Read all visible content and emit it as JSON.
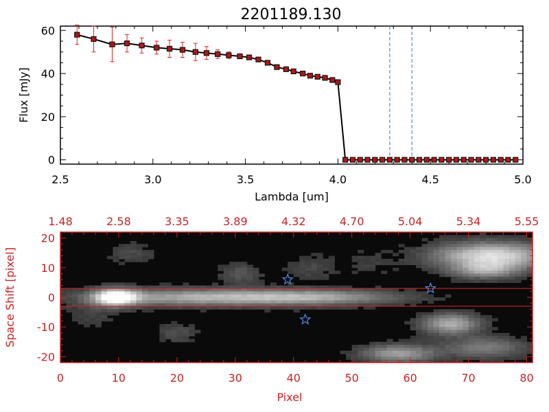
{
  "page": {
    "title": "2201189.130"
  },
  "colors": {
    "axis_black": "#000000",
    "axis_red": "#cc2222",
    "errorbar": "#dd2222",
    "marker_fill": "#b01818",
    "vline": "#4a8fe0",
    "star": "#4a8fe0",
    "image_bg": "#0a0a0a"
  },
  "chart_data": [
    {
      "type": "line",
      "xlabel": "Lambda [um]",
      "ylabel": "Flux [mJy]",
      "xlim": [
        2.5,
        5.0
      ],
      "ylim": [
        -2,
        62
      ],
      "x_ticks": [
        "2.5",
        "3.0",
        "3.5",
        "4.0",
        "4.5",
        "5.0"
      ],
      "y_ticks": [
        "0",
        "20",
        "40",
        "60"
      ],
      "vertical_lines": [
        4.28,
        4.4
      ],
      "series": [
        {
          "x": [
            2.59,
            2.68,
            2.78,
            2.86,
            2.94,
            3.02,
            3.09,
            3.16,
            3.23,
            3.29,
            3.35,
            3.41,
            3.47,
            3.52,
            3.57,
            3.62,
            3.67,
            3.72,
            3.76,
            3.81,
            3.85,
            3.89,
            3.93,
            3.97,
            4.0,
            4.04,
            4.08,
            4.12,
            4.16,
            4.2,
            4.24,
            4.28,
            4.32,
            4.36,
            4.4,
            4.44,
            4.48,
            4.52,
            4.56,
            4.6,
            4.64,
            4.68,
            4.72,
            4.76,
            4.8,
            4.84,
            4.88,
            4.92,
            4.96
          ],
          "values": [
            58,
            56,
            53.5,
            54,
            53,
            52,
            51.5,
            51,
            50,
            49.5,
            49,
            48.5,
            48,
            47.5,
            46.5,
            45,
            43,
            42,
            41,
            40,
            39,
            38.5,
            38,
            37,
            36,
            0,
            0,
            0,
            0,
            0,
            0,
            0,
            0,
            0,
            0,
            0,
            0,
            0,
            0,
            0,
            0,
            0,
            0,
            0,
            0,
            0,
            0,
            0,
            0
          ],
          "errors": [
            4.5,
            6,
            8,
            4,
            3.5,
            3,
            4,
            3.5,
            4,
            3,
            2,
            1.5,
            1,
            1,
            1,
            1,
            1,
            1,
            1,
            1,
            1,
            1,
            1,
            1,
            1,
            0.4,
            0.4,
            0.4,
            0.4,
            0.4,
            0.4,
            0.4,
            0.4,
            0.4,
            0.4,
            0.4,
            0.4,
            0.4,
            0.4,
            0.4,
            0.4,
            0.4,
            0.4,
            0.4,
            0.4,
            0.4,
            0.4,
            0.4,
            0.4
          ]
        }
      ]
    },
    {
      "type": "heatmap",
      "xlabel": "Pixel",
      "ylabel": "Space Shift [pixel]",
      "xlim": [
        0,
        81
      ],
      "ylim": [
        -22,
        22
      ],
      "x_ticks": [
        "0",
        "10",
        "20",
        "30",
        "40",
        "50",
        "60",
        "70",
        "80"
      ],
      "y_ticks": [
        "-20",
        "-10",
        "0",
        "10",
        "20"
      ],
      "top_ticks": [
        "1.48",
        "2.58",
        "3.35",
        "3.89",
        "4.32",
        "4.70",
        "5.04",
        "5.34",
        "5.55"
      ],
      "horizontal_lines": [
        3,
        -3
      ],
      "stars": [
        {
          "x": 39.0,
          "y": 6.0
        },
        {
          "x": 42.0,
          "y": -7.5
        },
        {
          "x": 63.5,
          "y": 3.0
        }
      ],
      "sources": [
        {
          "x": 9.5,
          "y": 0,
          "amp": 1.0,
          "sx": 2.6,
          "sy": 2.0
        },
        {
          "x": 25,
          "y": 0,
          "amp": 0.62,
          "sx": 14,
          "sy": 2.0
        },
        {
          "x": 45,
          "y": 0,
          "amp": 0.42,
          "sx": 10,
          "sy": 1.8
        },
        {
          "x": 74,
          "y": 14,
          "amp": 0.85,
          "sx": 7,
          "sy": 3.2
        },
        {
          "x": 73,
          "y": 9,
          "amp": 0.45,
          "sx": 4,
          "sy": 2.0
        },
        {
          "x": 67,
          "y": -9,
          "amp": 0.62,
          "sx": 3.5,
          "sy": 2.5
        },
        {
          "x": 58,
          "y": -19,
          "amp": 0.55,
          "sx": 4.5,
          "sy": 2.2
        },
        {
          "x": 73,
          "y": -17,
          "amp": 0.4,
          "sx": 5,
          "sy": 2.5
        },
        {
          "x": 31,
          "y": 8,
          "amp": 0.22,
          "sx": 2.5,
          "sy": 2.5
        },
        {
          "x": 12,
          "y": 15,
          "amp": 0.16,
          "sx": 3,
          "sy": 2.5
        },
        {
          "x": 20,
          "y": -12,
          "amp": 0.18,
          "sx": 2.5,
          "sy": 2.5
        },
        {
          "x": 43,
          "y": 10,
          "amp": 0.15,
          "sx": 3,
          "sy": 3
        },
        {
          "x": 5,
          "y": -6,
          "amp": 0.12,
          "sx": 3,
          "sy": 3
        },
        {
          "x": 53,
          "y": 12,
          "amp": 0.1,
          "sx": 3,
          "sy": 3
        }
      ]
    }
  ]
}
